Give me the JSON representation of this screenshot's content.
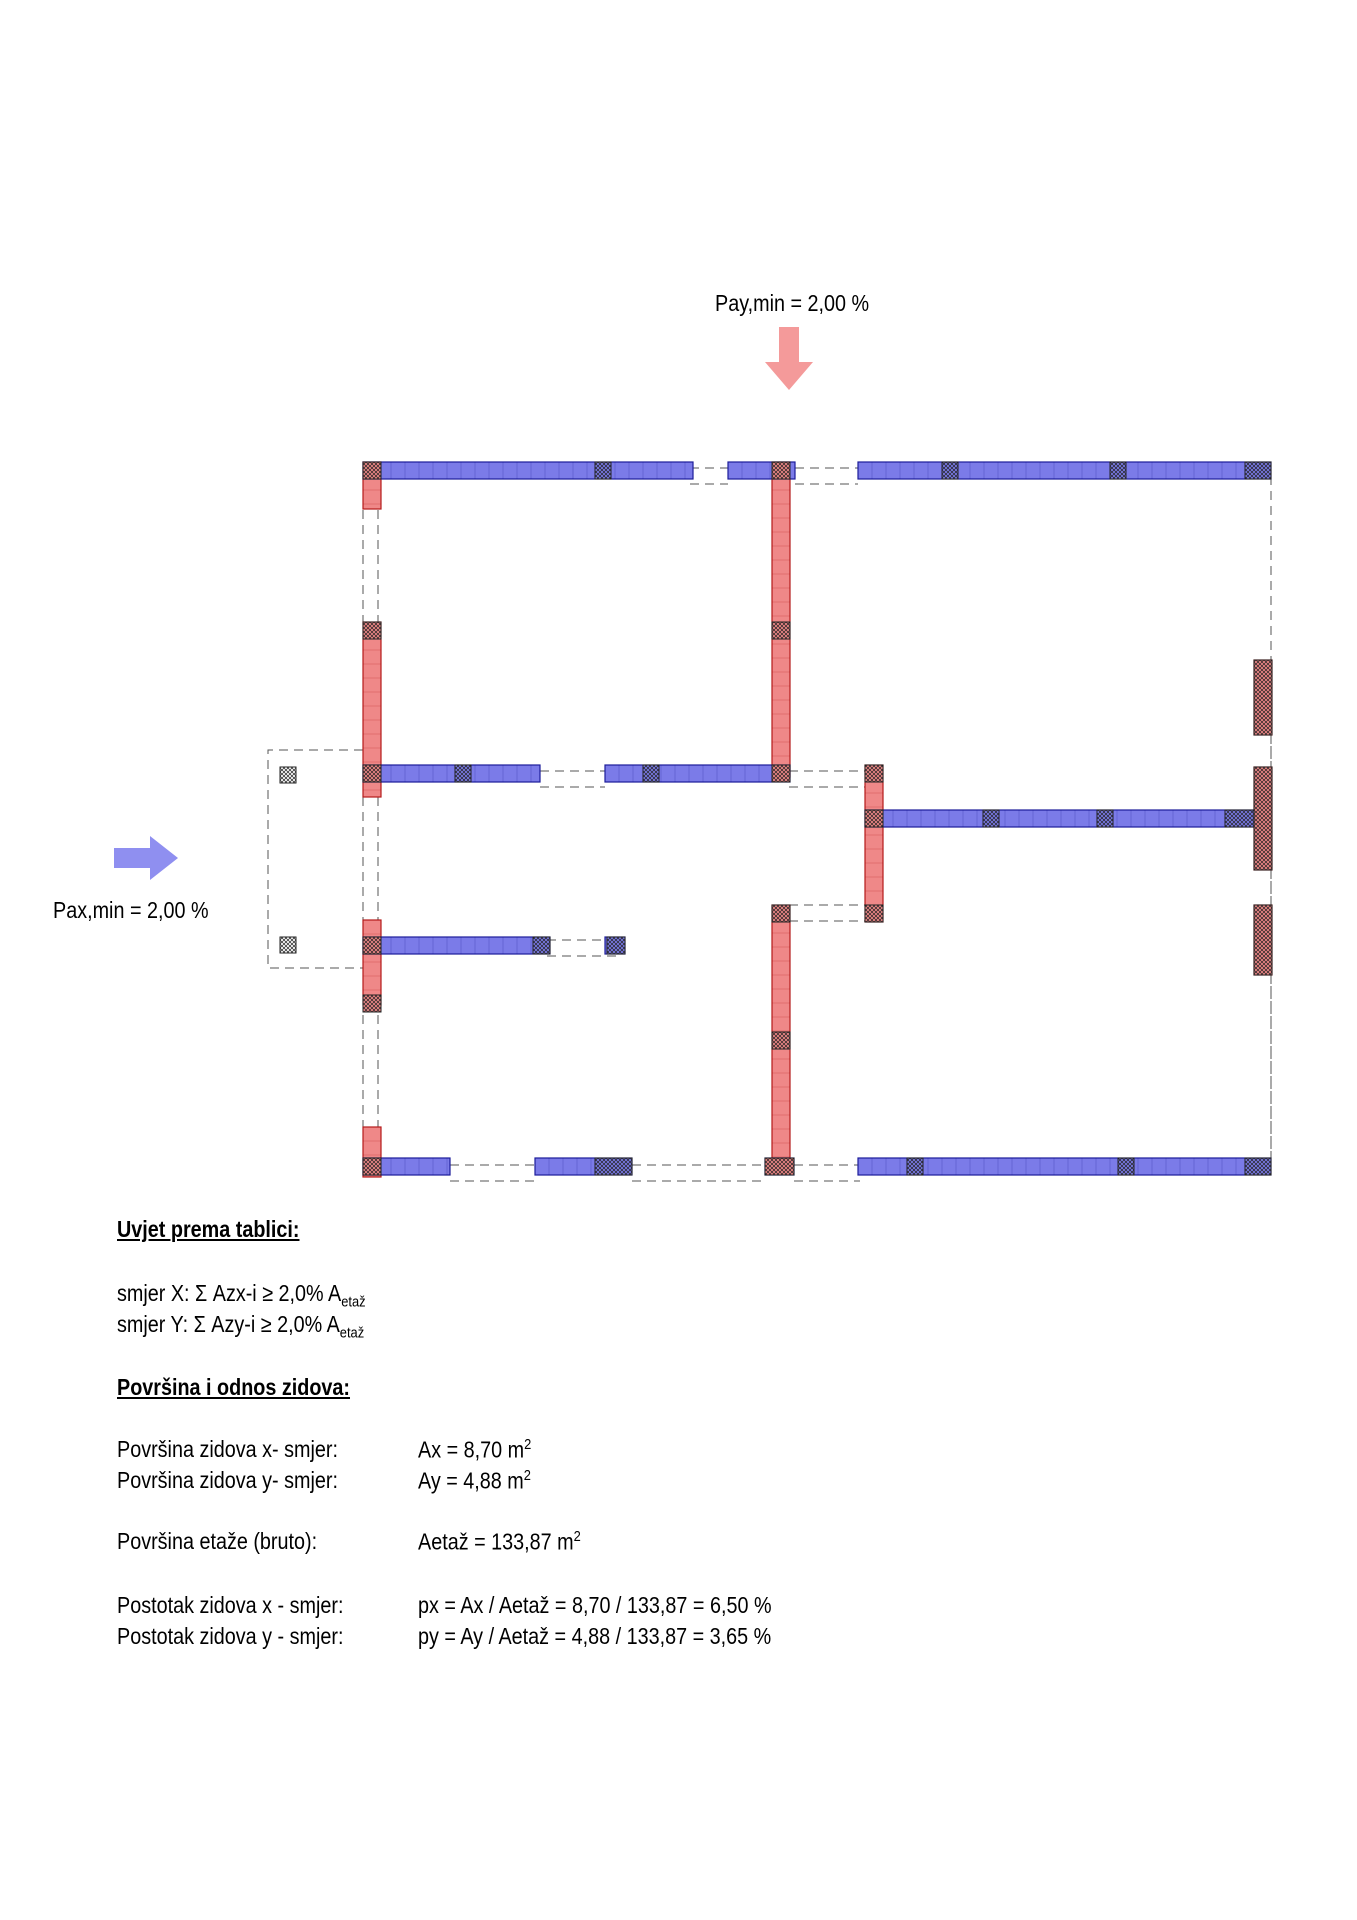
{
  "colors": {
    "x_wall": "#7b7be8",
    "x_wall_border": "#1c1c9a",
    "y_wall": "#ef8888",
    "y_wall_border": "#b41a1a",
    "x_arrow": "#8f8ff0",
    "y_arrow": "#f49a9a",
    "opening": "#555555"
  },
  "icons": [
    "arrow-right-icon",
    "arrow-down-icon"
  ],
  "labels": {
    "pay_min": "Pay,min = 2,00 %",
    "pax_min": "Pax,min = 2,00 %"
  },
  "condition": {
    "heading": "Uvjet prema tablici:",
    "x_text": "smjer X: Σ Azx-i ≥ 2,0% A",
    "x_sub": "etaž",
    "y_text": "smjer Y: Σ Azy-i ≥ 2,0% A",
    "y_sub": "etaž"
  },
  "areas": {
    "heading": "Površina i odnos zidova:",
    "rows": [
      {
        "label": "Površina zidova x- smjer:",
        "value": "Ax = 8,70 m",
        "sup": "2"
      },
      {
        "label": "Površina zidova y- smjer:",
        "value": "Ay = 4,88 m",
        "sup": "2"
      },
      {
        "label": "Površina etaže (bruto):",
        "value": "Aetaž = 133,87 m",
        "sup": "2"
      },
      {
        "label": "Postotak zidova x - smjer:",
        "value": "px = Ax / Aetaž = 8,70 / 133,87 = 6,50 %",
        "sup": ""
      },
      {
        "label": "Postotak zidova y - smjer:",
        "value": "py = Ay / Aetaž = 4,88 / 133,87 = 3,65 %",
        "sup": ""
      }
    ]
  }
}
